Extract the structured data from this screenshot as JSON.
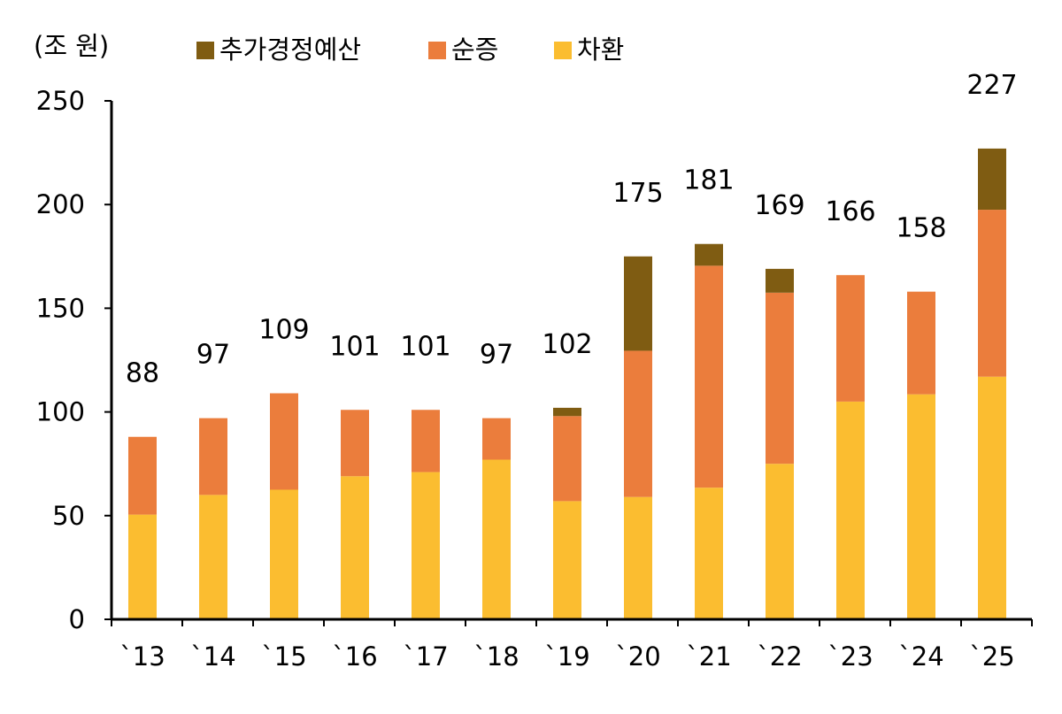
{
  "chart_data": {
    "type": "bar",
    "stacked": true,
    "unit_label": "(조 원)",
    "categories": [
      "`13",
      "`14",
      "`15",
      "`16",
      "`17",
      "`18",
      "`19",
      "`20",
      "`21",
      "`22",
      "`23",
      "`24",
      "`25"
    ],
    "series": [
      {
        "name": "차환",
        "color": "#FBBD30",
        "values": [
          50.5,
          60,
          62.5,
          69,
          71,
          77,
          57,
          59,
          63.5,
          75,
          105,
          108.5,
          117
        ]
      },
      {
        "name": "순증",
        "color": "#EB7D3C",
        "values": [
          37.5,
          37,
          46.5,
          32,
          30,
          20,
          41,
          70.5,
          107,
          82.5,
          61,
          49.5,
          80.5
        ]
      },
      {
        "name": "추가경정예산",
        "color": "#7F5C12",
        "values": [
          0,
          0,
          0,
          0,
          0,
          0,
          4,
          45.5,
          10.5,
          11.5,
          0,
          0,
          29.5
        ]
      }
    ],
    "totals": [
      "88",
      "97",
      "109",
      "101",
      "101",
      "97",
      "102",
      "175",
      "181",
      "169",
      "166",
      "158",
      "227"
    ],
    "legend_order": [
      "추가경정예산",
      "순증",
      "차환"
    ],
    "legend_position": "top",
    "ylim": [
      0,
      250
    ],
    "yticks": [
      0,
      50,
      100,
      150,
      200,
      250
    ],
    "grid": false
  }
}
